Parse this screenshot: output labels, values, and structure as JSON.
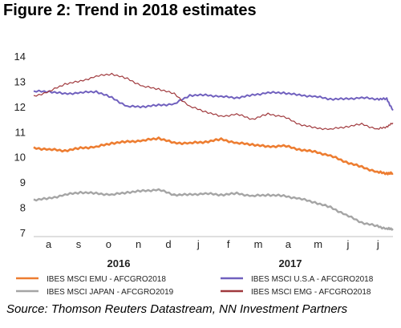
{
  "figure": {
    "title": "Figure 2: Trend in 2018 estimates",
    "source": "Source: Thomson Reuters Datastream, NN Investment Partners"
  },
  "chart_data": {
    "type": "line",
    "title": "Figure 2: Trend in 2018 estimates",
    "xlabel": "",
    "ylabel": "",
    "ylim": [
      7,
      14
    ],
    "yticks": [
      7,
      8,
      9,
      10,
      11,
      12,
      13,
      14
    ],
    "x_months": [
      "a",
      "s",
      "o",
      "n",
      "d",
      "j",
      "f",
      "m",
      "a",
      "m",
      "j",
      "j"
    ],
    "x_years": [
      "2016",
      "2017"
    ],
    "x": [
      0,
      0.5,
      1,
      1.5,
      2,
      2.5,
      3,
      3.5,
      4,
      4.5,
      5,
      5.5,
      6,
      6.5,
      7,
      7.5,
      8,
      8.5,
      9,
      9.5,
      10,
      10.5,
      11,
      11.3,
      11.5
    ],
    "grid": false,
    "legend_position": "bottom",
    "series": [
      {
        "name": "IBES MSCI EMU - AFCGRO2018",
        "color": "#ED7D31",
        "values": [
          10.35,
          10.3,
          10.25,
          10.35,
          10.4,
          10.55,
          10.6,
          10.65,
          10.75,
          10.55,
          10.55,
          10.6,
          10.7,
          10.55,
          10.5,
          10.4,
          10.45,
          10.3,
          10.2,
          10.05,
          9.8,
          9.6,
          9.4,
          9.35,
          9.35
        ]
      },
      {
        "name": "IBES MSCI U.S.A - AFCGRO2018",
        "color": "#7060BE",
        "values": [
          12.6,
          12.6,
          12.5,
          12.55,
          12.6,
          12.35,
          12.0,
          12.0,
          12.05,
          12.1,
          12.45,
          12.45,
          12.4,
          12.35,
          12.45,
          12.55,
          12.55,
          12.45,
          12.4,
          12.3,
          12.3,
          12.35,
          12.3,
          12.3,
          11.85
        ]
      },
      {
        "name": "IBES MSCI JAPAN - AFCGRO2019",
        "color": "#A5A5A5",
        "values": [
          8.3,
          8.35,
          8.5,
          8.6,
          8.55,
          8.5,
          8.6,
          8.65,
          8.7,
          8.5,
          8.5,
          8.55,
          8.5,
          8.55,
          8.45,
          8.5,
          8.45,
          8.35,
          8.2,
          8.0,
          7.7,
          7.4,
          7.25,
          7.15,
          7.15
        ]
      },
      {
        "name": "IBES MSCI EMG - AFCGRO2018",
        "color": "#A0393D",
        "values": [
          12.4,
          12.6,
          12.9,
          13.0,
          13.2,
          13.3,
          13.1,
          12.8,
          12.7,
          12.5,
          12.0,
          11.8,
          11.6,
          11.7,
          11.5,
          11.7,
          11.6,
          11.3,
          11.15,
          11.1,
          11.2,
          11.3,
          11.1,
          11.2,
          11.35
        ]
      }
    ]
  }
}
